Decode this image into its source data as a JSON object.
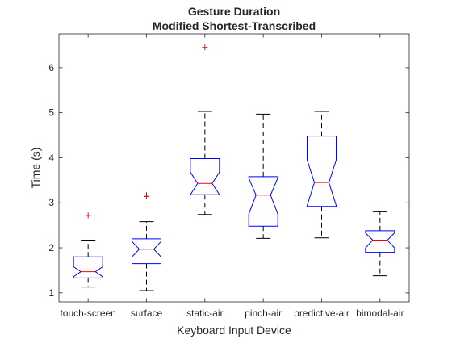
{
  "chart_data": {
    "type": "boxplot",
    "title": "Gesture Duration",
    "subtitle": "Modified Shortest-Transcribed",
    "xlabel": "Keyboard Input Device",
    "ylabel": "Time (s)",
    "ylim": [
      0.8,
      6.75
    ],
    "yticks": [
      1,
      2,
      3,
      4,
      5,
      6
    ],
    "ytick_labels": [
      "1",
      "2",
      "3",
      "4",
      "5",
      "6"
    ],
    "notched": true,
    "grid": false,
    "colors": {
      "box": "#0000ff",
      "median": "#ff0000",
      "whisker": "#000000",
      "outlier": "#ff0000"
    },
    "categories": [
      "touch-screen",
      "surface",
      "static-air",
      "pinch-air",
      "predictive-air",
      "bimodal-air"
    ],
    "boxes": [
      {
        "q1": 1.33,
        "median": 1.47,
        "q3": 1.8,
        "notch_low": 1.36,
        "notch_high": 1.58,
        "whisker_low": 1.13,
        "whisker_high": 2.17,
        "outliers": [
          2.72
        ]
      },
      {
        "q1": 1.65,
        "median": 1.97,
        "q3": 2.2,
        "notch_low": 1.8,
        "notch_high": 2.14,
        "whisker_low": 1.05,
        "whisker_high": 2.58,
        "outliers": [
          3.14,
          3.17
        ]
      },
      {
        "q1": 3.18,
        "median": 3.43,
        "q3": 3.98,
        "notch_low": 3.18,
        "notch_high": 3.68,
        "whisker_low": 2.74,
        "whisker_high": 5.03,
        "outliers": [
          6.45
        ]
      },
      {
        "q1": 2.48,
        "median": 3.17,
        "q3": 3.58,
        "notch_low": 2.75,
        "notch_high": 3.55,
        "whisker_low": 2.21,
        "whisker_high": 4.97,
        "outliers": []
      },
      {
        "q1": 2.92,
        "median": 3.45,
        "q3": 4.48,
        "notch_low": 2.94,
        "notch_high": 3.95,
        "whisker_low": 2.22,
        "whisker_high": 5.03,
        "outliers": []
      },
      {
        "q1": 1.9,
        "median": 2.17,
        "q3": 2.38,
        "notch_low": 2.0,
        "notch_high": 2.33,
        "whisker_low": 1.38,
        "whisker_high": 2.8,
        "outliers": []
      }
    ]
  }
}
